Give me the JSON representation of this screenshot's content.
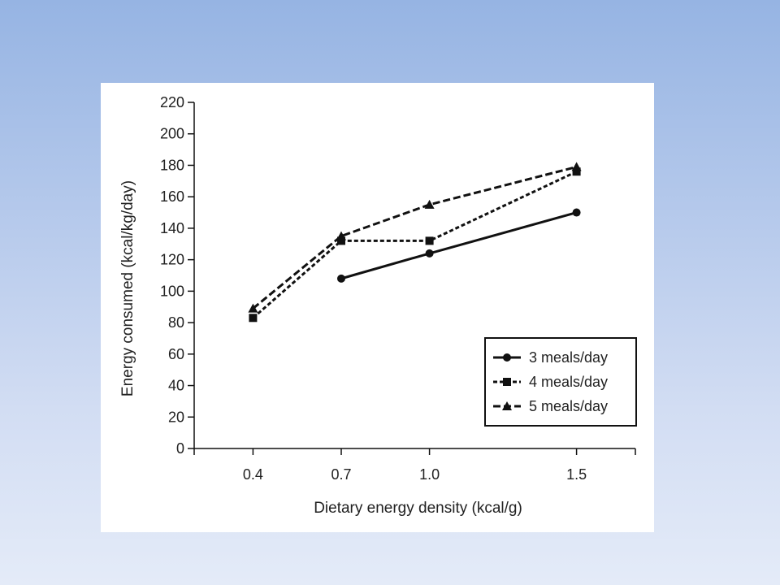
{
  "chart_data": {
    "type": "line",
    "xlabel": "Dietary energy density (kcal/g)",
    "ylabel": "Energy consumed (kcal/kg/day)",
    "x_ticks": [
      "0.4",
      "0.7",
      "1.0",
      "1.5"
    ],
    "x_values": [
      0.4,
      0.7,
      1.0,
      1.5
    ],
    "xlim": [
      0.2,
      1.7
    ],
    "ylim": [
      0,
      220
    ],
    "y_ticks": [
      0,
      20,
      40,
      60,
      80,
      100,
      120,
      140,
      160,
      180,
      200,
      220
    ],
    "grid": false,
    "legend_position": "bottom-right",
    "series": [
      {
        "name": "3 meals/day",
        "marker": "circle",
        "line_style": "solid",
        "x": [
          0.7,
          1.0,
          1.5
        ],
        "y": [
          108,
          124,
          150
        ]
      },
      {
        "name": "4 meals/day",
        "marker": "square",
        "line_style": "dotted",
        "x": [
          0.4,
          0.7,
          1.0,
          1.5
        ],
        "y": [
          83,
          132,
          132,
          176
        ]
      },
      {
        "name": "5 meals/day",
        "marker": "triangle",
        "line_style": "dashed",
        "x": [
          0.4,
          0.7,
          1.0,
          1.5
        ],
        "y": [
          89,
          135,
          155,
          179
        ]
      }
    ]
  },
  "colors": {
    "ink": "#111111",
    "panel_background": "#ffffff",
    "slide_background_top": "#96b4e3",
    "slide_background_bottom": "#e4ebf8"
  }
}
